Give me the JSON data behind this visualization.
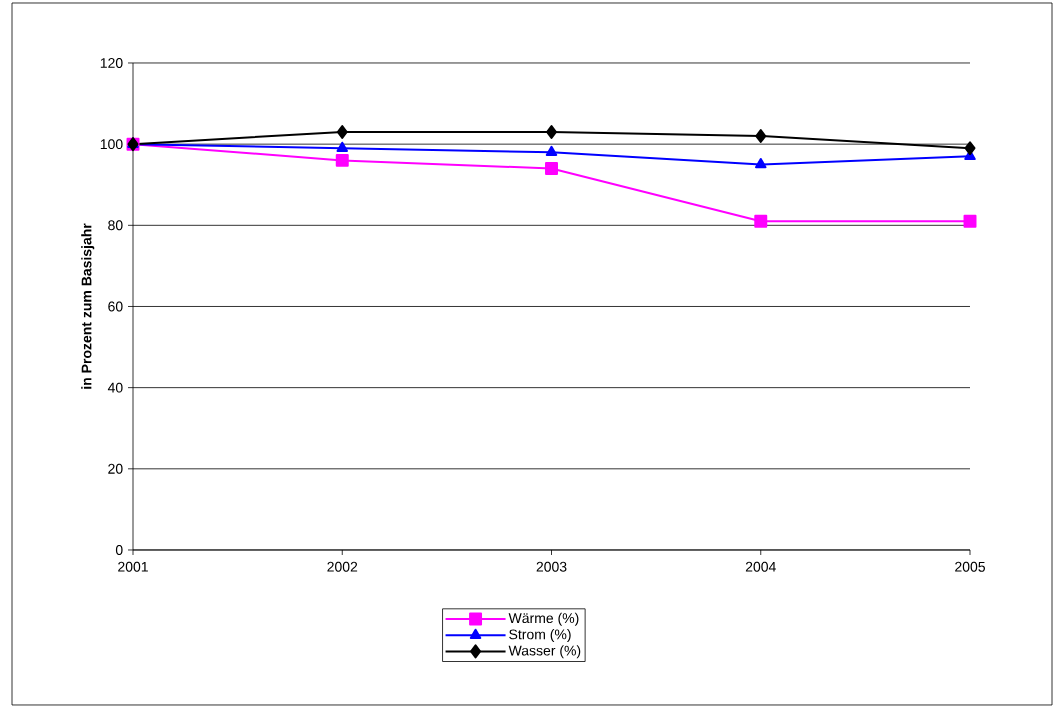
{
  "chart_data": {
    "type": "line",
    "ylabel": "in Prozent zum Basisjahr",
    "categories": [
      "2001",
      "2002",
      "2003",
      "2004",
      "2005"
    ],
    "series": [
      {
        "name": "Wärme (%)",
        "color": "#ff00ff",
        "marker": "square",
        "values": [
          100,
          96,
          94,
          81,
          81
        ]
      },
      {
        "name": "Strom (%)",
        "color": "#0000ff",
        "marker": "triangle",
        "values": [
          100,
          99,
          98,
          95,
          97
        ]
      },
      {
        "name": "Wasser (%)",
        "color": "#000000",
        "marker": "diamond",
        "values": [
          100,
          103,
          103,
          102,
          99
        ]
      }
    ],
    "ylim": [
      0,
      120
    ],
    "yticks": [
      0,
      20,
      40,
      60,
      80,
      100,
      120
    ],
    "grid": "y",
    "legend": "bottom",
    "line_style": "solid"
  }
}
